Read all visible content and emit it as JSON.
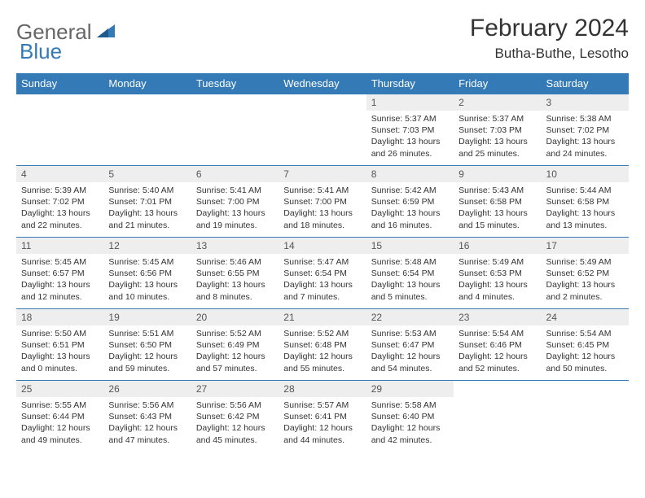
{
  "logo": {
    "text1": "General",
    "text2": "Blue"
  },
  "title": "February 2024",
  "location": "Butha-Buthe, Lesotho",
  "header_bg": "#347ab7",
  "header_fg": "#ffffff",
  "cell_border": "#347ab7",
  "daynum_bg": "#eeeeee",
  "columns": [
    "Sunday",
    "Monday",
    "Tuesday",
    "Wednesday",
    "Thursday",
    "Friday",
    "Saturday"
  ],
  "weeks": [
    [
      {
        "n": "",
        "sunrise": "",
        "sunset": "",
        "day1": "",
        "day2": ""
      },
      {
        "n": "",
        "sunrise": "",
        "sunset": "",
        "day1": "",
        "day2": ""
      },
      {
        "n": "",
        "sunrise": "",
        "sunset": "",
        "day1": "",
        "day2": ""
      },
      {
        "n": "",
        "sunrise": "",
        "sunset": "",
        "day1": "",
        "day2": ""
      },
      {
        "n": "1",
        "sunrise": "Sunrise: 5:37 AM",
        "sunset": "Sunset: 7:03 PM",
        "day1": "Daylight: 13 hours",
        "day2": "and 26 minutes."
      },
      {
        "n": "2",
        "sunrise": "Sunrise: 5:37 AM",
        "sunset": "Sunset: 7:03 PM",
        "day1": "Daylight: 13 hours",
        "day2": "and 25 minutes."
      },
      {
        "n": "3",
        "sunrise": "Sunrise: 5:38 AM",
        "sunset": "Sunset: 7:02 PM",
        "day1": "Daylight: 13 hours",
        "day2": "and 24 minutes."
      }
    ],
    [
      {
        "n": "4",
        "sunrise": "Sunrise: 5:39 AM",
        "sunset": "Sunset: 7:02 PM",
        "day1": "Daylight: 13 hours",
        "day2": "and 22 minutes."
      },
      {
        "n": "5",
        "sunrise": "Sunrise: 5:40 AM",
        "sunset": "Sunset: 7:01 PM",
        "day1": "Daylight: 13 hours",
        "day2": "and 21 minutes."
      },
      {
        "n": "6",
        "sunrise": "Sunrise: 5:41 AM",
        "sunset": "Sunset: 7:00 PM",
        "day1": "Daylight: 13 hours",
        "day2": "and 19 minutes."
      },
      {
        "n": "7",
        "sunrise": "Sunrise: 5:41 AM",
        "sunset": "Sunset: 7:00 PM",
        "day1": "Daylight: 13 hours",
        "day2": "and 18 minutes."
      },
      {
        "n": "8",
        "sunrise": "Sunrise: 5:42 AM",
        "sunset": "Sunset: 6:59 PM",
        "day1": "Daylight: 13 hours",
        "day2": "and 16 minutes."
      },
      {
        "n": "9",
        "sunrise": "Sunrise: 5:43 AM",
        "sunset": "Sunset: 6:58 PM",
        "day1": "Daylight: 13 hours",
        "day2": "and 15 minutes."
      },
      {
        "n": "10",
        "sunrise": "Sunrise: 5:44 AM",
        "sunset": "Sunset: 6:58 PM",
        "day1": "Daylight: 13 hours",
        "day2": "and 13 minutes."
      }
    ],
    [
      {
        "n": "11",
        "sunrise": "Sunrise: 5:45 AM",
        "sunset": "Sunset: 6:57 PM",
        "day1": "Daylight: 13 hours",
        "day2": "and 12 minutes."
      },
      {
        "n": "12",
        "sunrise": "Sunrise: 5:45 AM",
        "sunset": "Sunset: 6:56 PM",
        "day1": "Daylight: 13 hours",
        "day2": "and 10 minutes."
      },
      {
        "n": "13",
        "sunrise": "Sunrise: 5:46 AM",
        "sunset": "Sunset: 6:55 PM",
        "day1": "Daylight: 13 hours",
        "day2": "and 8 minutes."
      },
      {
        "n": "14",
        "sunrise": "Sunrise: 5:47 AM",
        "sunset": "Sunset: 6:54 PM",
        "day1": "Daylight: 13 hours",
        "day2": "and 7 minutes."
      },
      {
        "n": "15",
        "sunrise": "Sunrise: 5:48 AM",
        "sunset": "Sunset: 6:54 PM",
        "day1": "Daylight: 13 hours",
        "day2": "and 5 minutes."
      },
      {
        "n": "16",
        "sunrise": "Sunrise: 5:49 AM",
        "sunset": "Sunset: 6:53 PM",
        "day1": "Daylight: 13 hours",
        "day2": "and 4 minutes."
      },
      {
        "n": "17",
        "sunrise": "Sunrise: 5:49 AM",
        "sunset": "Sunset: 6:52 PM",
        "day1": "Daylight: 13 hours",
        "day2": "and 2 minutes."
      }
    ],
    [
      {
        "n": "18",
        "sunrise": "Sunrise: 5:50 AM",
        "sunset": "Sunset: 6:51 PM",
        "day1": "Daylight: 13 hours",
        "day2": "and 0 minutes."
      },
      {
        "n": "19",
        "sunrise": "Sunrise: 5:51 AM",
        "sunset": "Sunset: 6:50 PM",
        "day1": "Daylight: 12 hours",
        "day2": "and 59 minutes."
      },
      {
        "n": "20",
        "sunrise": "Sunrise: 5:52 AM",
        "sunset": "Sunset: 6:49 PM",
        "day1": "Daylight: 12 hours",
        "day2": "and 57 minutes."
      },
      {
        "n": "21",
        "sunrise": "Sunrise: 5:52 AM",
        "sunset": "Sunset: 6:48 PM",
        "day1": "Daylight: 12 hours",
        "day2": "and 55 minutes."
      },
      {
        "n": "22",
        "sunrise": "Sunrise: 5:53 AM",
        "sunset": "Sunset: 6:47 PM",
        "day1": "Daylight: 12 hours",
        "day2": "and 54 minutes."
      },
      {
        "n": "23",
        "sunrise": "Sunrise: 5:54 AM",
        "sunset": "Sunset: 6:46 PM",
        "day1": "Daylight: 12 hours",
        "day2": "and 52 minutes."
      },
      {
        "n": "24",
        "sunrise": "Sunrise: 5:54 AM",
        "sunset": "Sunset: 6:45 PM",
        "day1": "Daylight: 12 hours",
        "day2": "and 50 minutes."
      }
    ],
    [
      {
        "n": "25",
        "sunrise": "Sunrise: 5:55 AM",
        "sunset": "Sunset: 6:44 PM",
        "day1": "Daylight: 12 hours",
        "day2": "and 49 minutes."
      },
      {
        "n": "26",
        "sunrise": "Sunrise: 5:56 AM",
        "sunset": "Sunset: 6:43 PM",
        "day1": "Daylight: 12 hours",
        "day2": "and 47 minutes."
      },
      {
        "n": "27",
        "sunrise": "Sunrise: 5:56 AM",
        "sunset": "Sunset: 6:42 PM",
        "day1": "Daylight: 12 hours",
        "day2": "and 45 minutes."
      },
      {
        "n": "28",
        "sunrise": "Sunrise: 5:57 AM",
        "sunset": "Sunset: 6:41 PM",
        "day1": "Daylight: 12 hours",
        "day2": "and 44 minutes."
      },
      {
        "n": "29",
        "sunrise": "Sunrise: 5:58 AM",
        "sunset": "Sunset: 6:40 PM",
        "day1": "Daylight: 12 hours",
        "day2": "and 42 minutes."
      },
      {
        "n": "",
        "sunrise": "",
        "sunset": "",
        "day1": "",
        "day2": ""
      },
      {
        "n": "",
        "sunrise": "",
        "sunset": "",
        "day1": "",
        "day2": ""
      }
    ]
  ]
}
